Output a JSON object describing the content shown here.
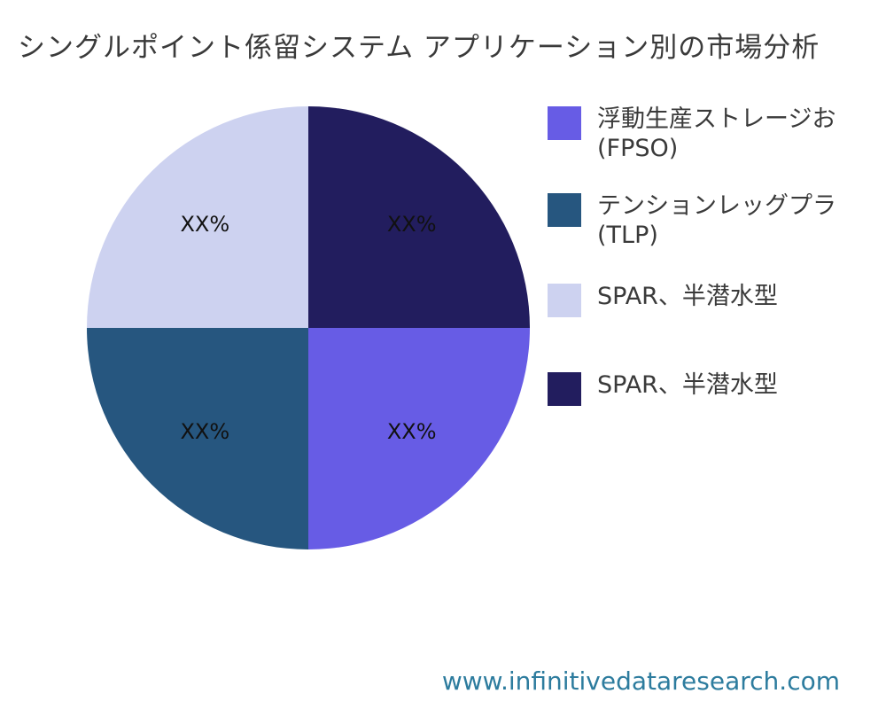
{
  "chart_data": {
    "type": "pie",
    "title": "シングルポイント係留システム アプリケーション別の市場分析",
    "values": [
      25,
      25,
      25,
      25
    ],
    "value_labels": [
      "XX%",
      "XX%",
      "XX%",
      "XX%"
    ],
    "slice_names": [
      "SPAR、半潜水型",
      "浮動生産ストレージお (FPSO)",
      "テンションレッグプラ (TLP)",
      "SPAR、半潜水型"
    ],
    "colors": [
      "#221d5e",
      "#675ce5",
      "#26567f",
      "#cdd2f0"
    ],
    "start_angle_deg": 0,
    "direction": "clockwise",
    "legend_position": "right",
    "grid": false
  },
  "legend": {
    "items": [
      {
        "lines": [
          "浮動生産ストレージお",
          "(FPSO)"
        ],
        "color": "#675ce5"
      },
      {
        "lines": [
          "テンションレッグプラ",
          "(TLP)"
        ],
        "color": "#26567f"
      },
      {
        "lines": [
          "SPAR、半潜水型"
        ],
        "color": "#cdd2f0"
      },
      {
        "lines": [
          "SPAR、半潜水型"
        ],
        "color": "#221d5e"
      }
    ]
  },
  "footer": {
    "website": "www.infinitivedataresearch.com"
  }
}
